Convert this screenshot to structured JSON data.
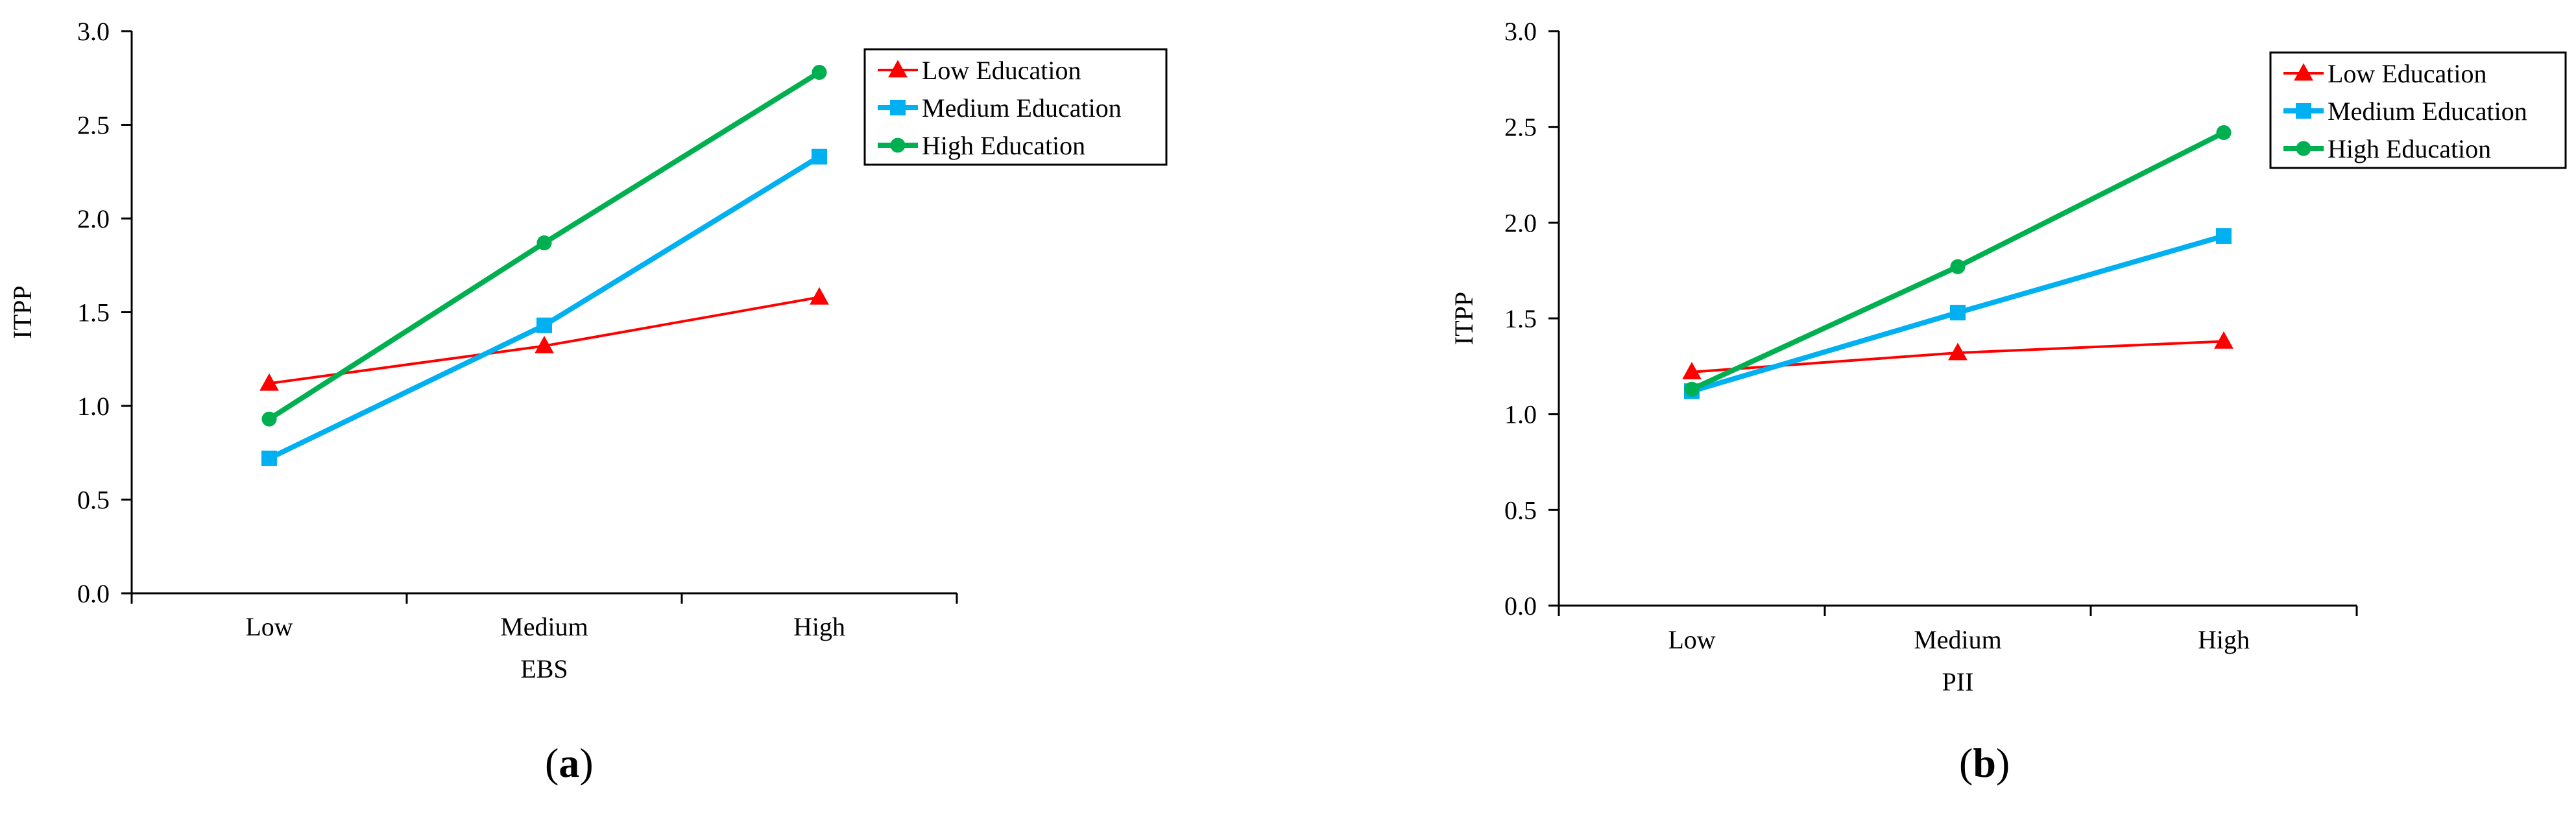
{
  "colors": {
    "low": "#ff0000",
    "medium": "#00b0f0",
    "high": "#00b050",
    "axis": "#000000"
  },
  "chart_data": [
    {
      "type": "line",
      "caption": "a",
      "categories": [
        "Low",
        "Medium",
        "High"
      ],
      "xlabel": "EBS",
      "ylabel": "ITPP",
      "ylim": [
        0,
        3
      ],
      "yticks": [
        "0.0",
        "0.5",
        "1.0",
        "1.5",
        "2.0",
        "2.5",
        "3.0"
      ],
      "grid": false,
      "legend": "top-right",
      "series": [
        {
          "name": "Low Education",
          "marker": "triangle",
          "color": "#ff0000",
          "values": [
            1.12,
            1.32,
            1.58
          ]
        },
        {
          "name": "Medium Education",
          "marker": "square",
          "color": "#00b0f0",
          "values": [
            0.72,
            1.43,
            2.33
          ]
        },
        {
          "name": "High Education",
          "marker": "circle",
          "color": "#00b050",
          "values": [
            0.93,
            1.87,
            2.78
          ]
        }
      ]
    },
    {
      "type": "line",
      "caption": "b",
      "categories": [
        "Low",
        "Medium",
        "High"
      ],
      "xlabel": "PII",
      "ylabel": "ITPP",
      "ylim": [
        0,
        3
      ],
      "yticks": [
        "0.0",
        "0.5",
        "1.0",
        "1.5",
        "2.0",
        "2.5",
        "3.0"
      ],
      "grid": false,
      "legend": "top-right",
      "series": [
        {
          "name": "Low Education",
          "marker": "triangle",
          "color": "#ff0000",
          "values": [
            1.22,
            1.32,
            1.38
          ]
        },
        {
          "name": "Medium Education",
          "marker": "square",
          "color": "#00b0f0",
          "values": [
            1.12,
            1.53,
            1.93
          ]
        },
        {
          "name": "High Education",
          "marker": "circle",
          "color": "#00b050",
          "values": [
            1.13,
            1.77,
            2.47
          ]
        }
      ]
    }
  ]
}
